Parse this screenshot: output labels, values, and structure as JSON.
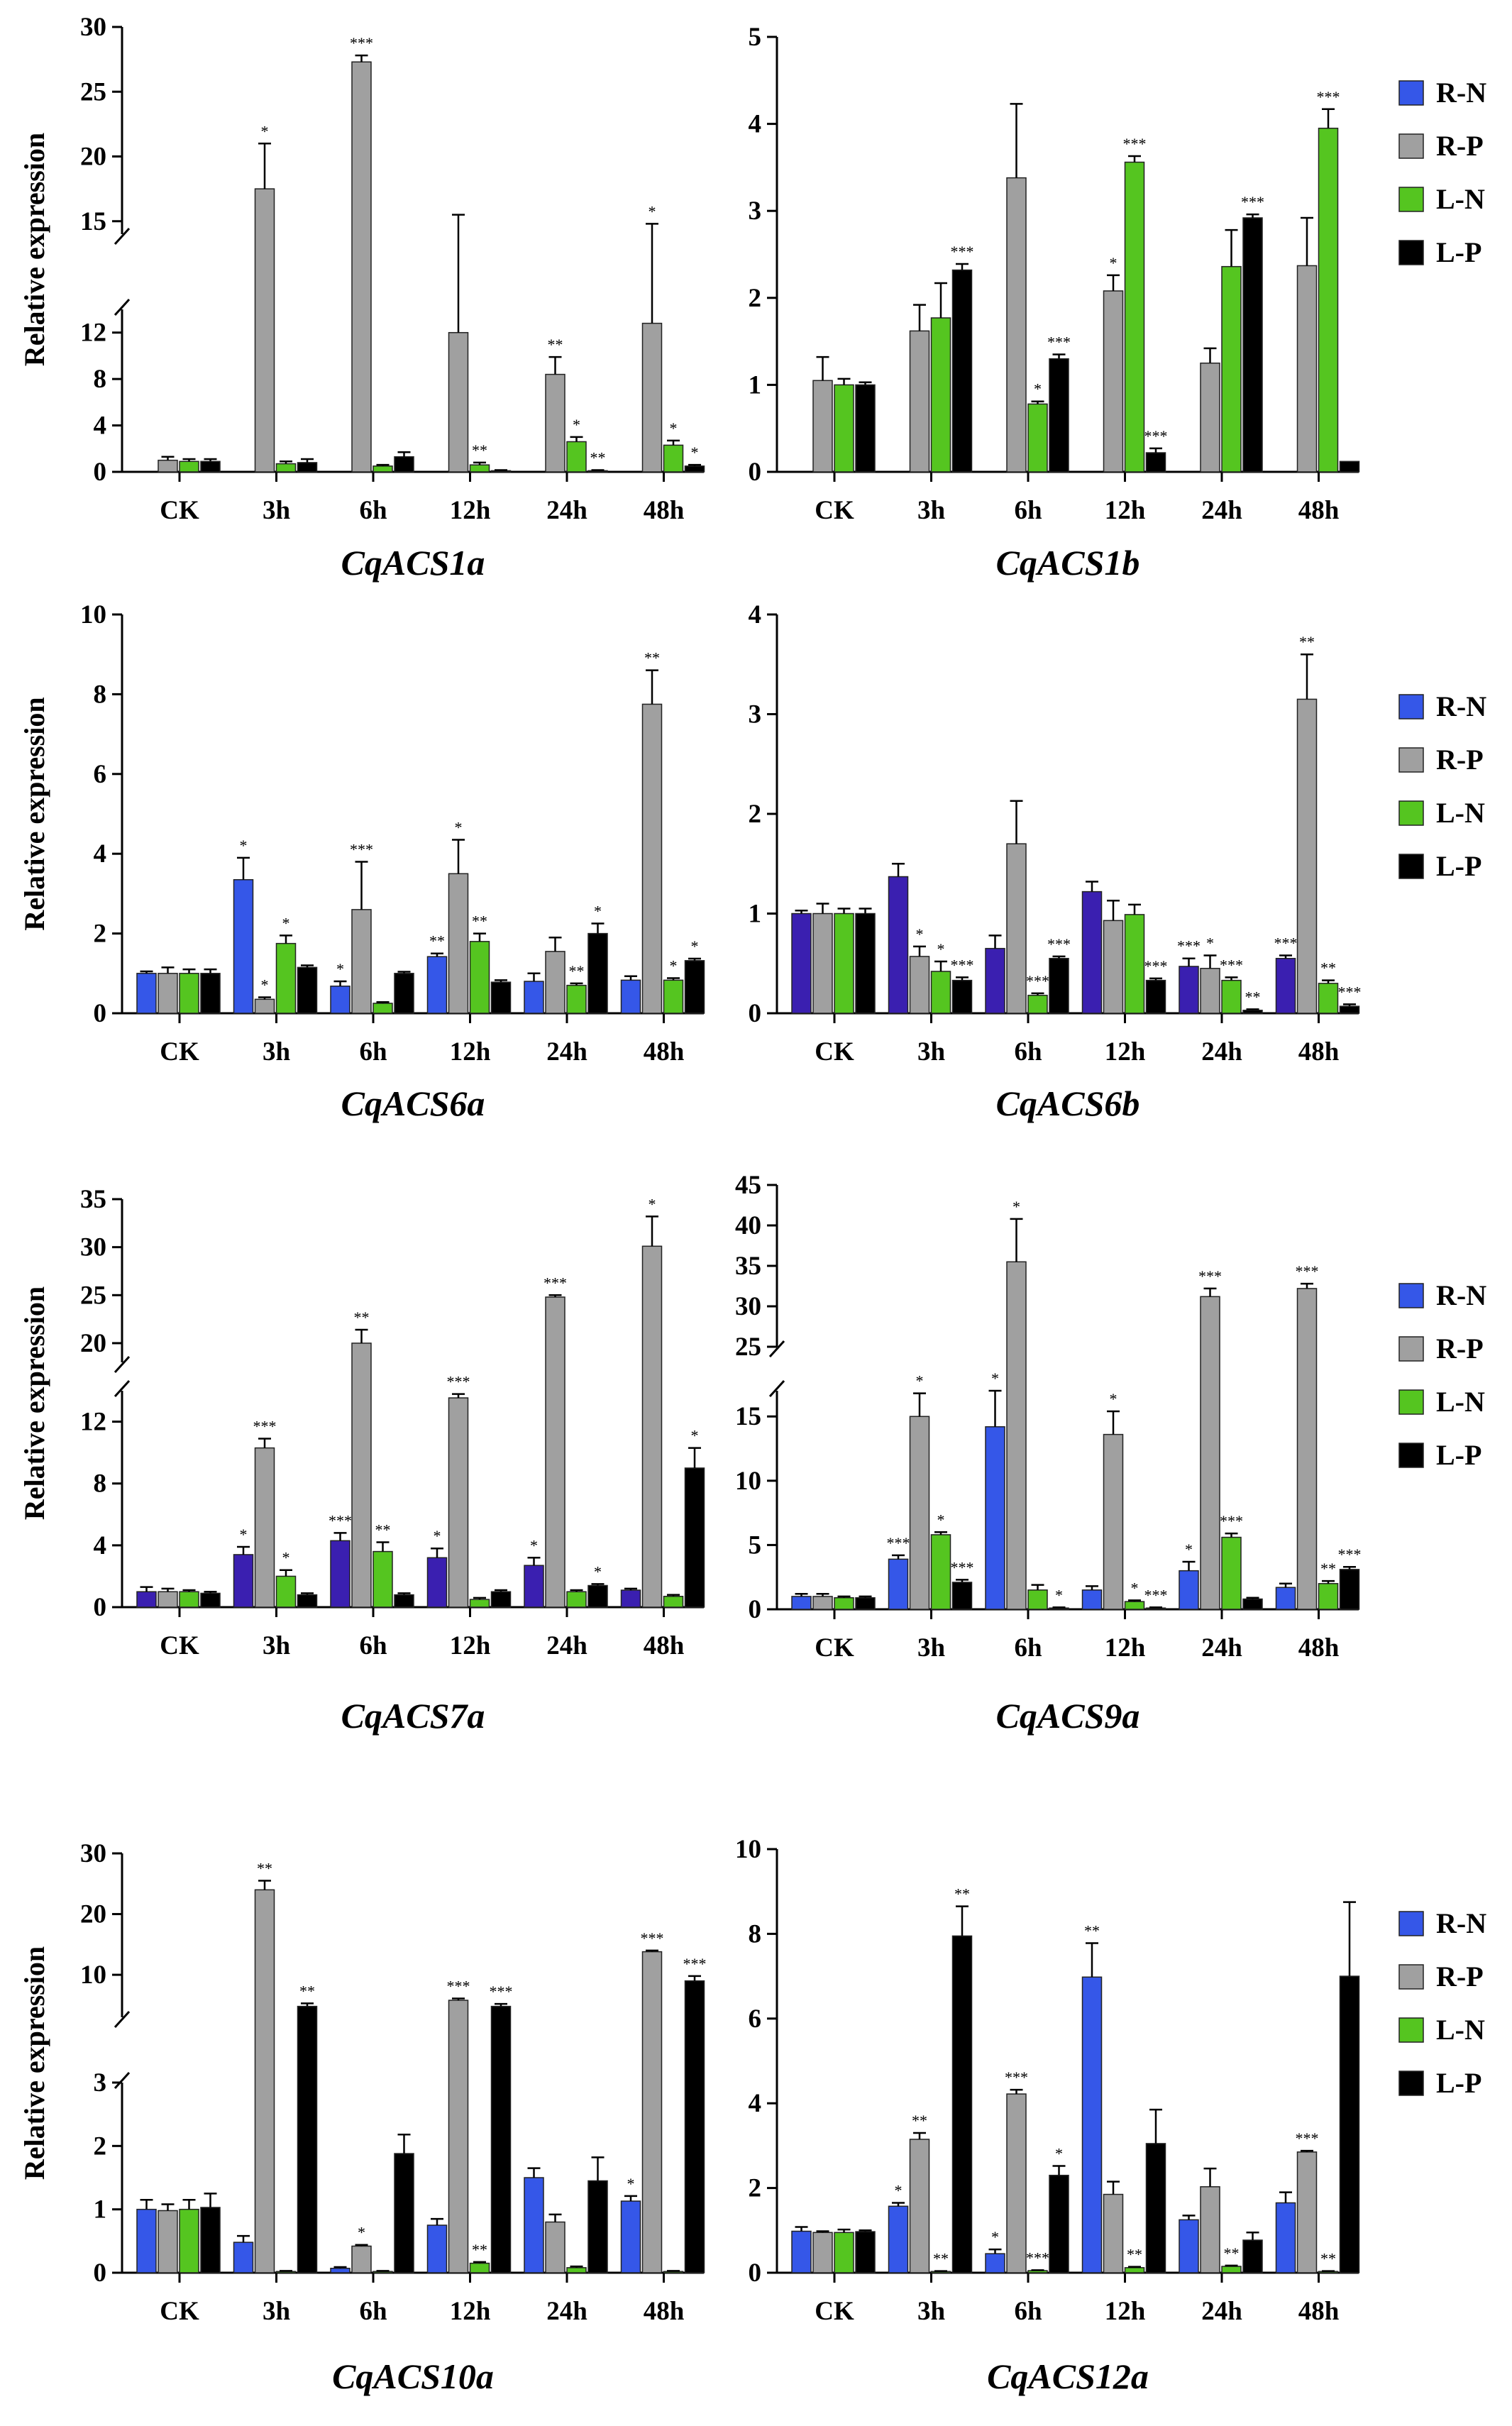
{
  "figure": {
    "ylabel": "Relative expression",
    "categories": [
      "CK",
      "3h",
      "6h",
      "12h",
      "24h",
      "48h"
    ],
    "series_names": [
      "R-N",
      "R-P",
      "L-N",
      "L-P"
    ],
    "colors": {
      "R-N": "#3557e8",
      "R-N-dark": "#3a1fb0",
      "R-P": "#a0a0a0",
      "L-N": "#55c520",
      "L-P": "#000000"
    }
  },
  "chart_data": [
    {
      "type": "bar",
      "title": "CqACS1a",
      "ylabel": "Relative expression",
      "categories": [
        "CK",
        "3h",
        "6h",
        "12h",
        "24h",
        "48h"
      ],
      "broken_axis": {
        "lower": [
          0,
          14
        ],
        "upper": [
          14,
          30
        ]
      },
      "lower_ticks": [
        "0",
        "4",
        "8",
        "12"
      ],
      "upper_ticks": [
        "15",
        "20",
        "25",
        "30"
      ],
      "series": [
        {
          "name": "R-N",
          "values": [
            0,
            0,
            0,
            0,
            0,
            0
          ],
          "errors": [
            0,
            0,
            0,
            0,
            0,
            0
          ],
          "sig": [
            "",
            "",
            "",
            "",
            "",
            ""
          ]
        },
        {
          "name": "R-P",
          "values": [
            1.0,
            17.5,
            27.3,
            12.0,
            8.4,
            12.8
          ],
          "errors": [
            0.3,
            3.5,
            0.5,
            3.5,
            1.5,
            2.0
          ],
          "sig": [
            "",
            "*",
            "***",
            "",
            "**",
            "*"
          ]
        },
        {
          "name": "L-N",
          "values": [
            0.9,
            0.7,
            0.5,
            0.6,
            2.6,
            2.3
          ],
          "errors": [
            0.2,
            0.2,
            0.1,
            0.2,
            0.4,
            0.4
          ],
          "sig": [
            "",
            "",
            "",
            "**",
            "*",
            "*"
          ]
        },
        {
          "name": "L-P",
          "values": [
            0.9,
            0.8,
            1.3,
            0.1,
            0.1,
            0.5
          ],
          "errors": [
            0.2,
            0.3,
            0.4,
            0.05,
            0.05,
            0.1
          ],
          "sig": [
            "",
            "",
            "",
            "",
            "**",
            "*"
          ]
        }
      ],
      "legend": false
    },
    {
      "type": "bar",
      "title": "CqACS1b",
      "ylabel": "",
      "categories": [
        "CK",
        "3h",
        "6h",
        "12h",
        "24h",
        "48h"
      ],
      "ylim": [
        0,
        5
      ],
      "ticks": [
        "0",
        "1",
        "2",
        "3",
        "4",
        "5"
      ],
      "series": [
        {
          "name": "R-N",
          "values": [
            0,
            0,
            0,
            0,
            0,
            0
          ],
          "errors": [
            0,
            0,
            0,
            0,
            0,
            0
          ],
          "sig": [
            "",
            "",
            "",
            "",
            "",
            ""
          ]
        },
        {
          "name": "R-P",
          "values": [
            1.05,
            1.62,
            3.38,
            2.08,
            1.25,
            2.37
          ],
          "errors": [
            0.27,
            0.3,
            0.85,
            0.18,
            0.17,
            0.55
          ],
          "sig": [
            "",
            "",
            "",
            "*",
            "",
            ""
          ]
        },
        {
          "name": "L-N",
          "values": [
            1.0,
            1.77,
            0.78,
            3.56,
            2.36,
            3.95
          ],
          "errors": [
            0.07,
            0.4,
            0.03,
            0.07,
            0.42,
            0.22
          ],
          "sig": [
            "",
            "",
            "*",
            "***",
            "",
            "***"
          ]
        },
        {
          "name": "L-P",
          "values": [
            1.0,
            2.32,
            1.3,
            0.22,
            2.92,
            0.12
          ],
          "errors": [
            0.03,
            0.07,
            0.05,
            0.05,
            0.04,
            0.0
          ],
          "sig": [
            "",
            "***",
            "***",
            "***",
            "***",
            ""
          ]
        }
      ],
      "legend": true
    },
    {
      "type": "bar",
      "title": "CqACS6a",
      "ylabel": "Relative expression",
      "categories": [
        "CK",
        "3h",
        "6h",
        "12h",
        "24h",
        "48h"
      ],
      "ylim": [
        0,
        10
      ],
      "ticks": [
        "0",
        "2",
        "4",
        "6",
        "8",
        "10"
      ],
      "series": [
        {
          "name": "R-N",
          "values": [
            1.0,
            3.35,
            0.68,
            1.42,
            0.8,
            0.83
          ],
          "errors": [
            0.05,
            0.55,
            0.12,
            0.08,
            0.2,
            0.1
          ],
          "sig": [
            "",
            "*",
            "*",
            "**",
            "",
            ""
          ]
        },
        {
          "name": "R-P",
          "values": [
            1.0,
            0.35,
            2.6,
            3.5,
            1.55,
            7.75
          ],
          "errors": [
            0.15,
            0.05,
            1.2,
            0.85,
            0.35,
            0.85
          ],
          "sig": [
            "",
            "*",
            "***",
            "*",
            "",
            "**"
          ]
        },
        {
          "name": "L-N",
          "values": [
            1.0,
            1.75,
            0.25,
            1.8,
            0.7,
            0.83
          ],
          "errors": [
            0.1,
            0.2,
            0.03,
            0.2,
            0.05,
            0.05
          ],
          "sig": [
            "",
            "*",
            "",
            "**",
            "**",
            "*"
          ]
        },
        {
          "name": "L-P",
          "values": [
            1.0,
            1.15,
            1.0,
            0.78,
            2.0,
            1.32
          ],
          "errors": [
            0.1,
            0.05,
            0.04,
            0.05,
            0.25,
            0.05
          ],
          "sig": [
            "",
            "",
            "",
            "",
            "*",
            "*"
          ]
        }
      ],
      "legend": false
    },
    {
      "type": "bar",
      "title": "CqACS6b",
      "ylabel": "",
      "categories": [
        "CK",
        "3h",
        "6h",
        "12h",
        "24h",
        "48h"
      ],
      "ylim": [
        0,
        4
      ],
      "ticks": [
        "0",
        "1",
        "2",
        "3",
        "4"
      ],
      "series": [
        {
          "name": "R-N",
          "values": [
            1.0,
            1.37,
            0.65,
            1.22,
            0.47,
            0.55
          ],
          "errors": [
            0.03,
            0.13,
            0.13,
            0.1,
            0.08,
            0.03
          ],
          "sig": [
            "",
            "",
            "",
            "",
            "***",
            "***"
          ]
        },
        {
          "name": "R-P",
          "values": [
            1.0,
            0.57,
            1.7,
            0.93,
            0.45,
            3.15
          ],
          "errors": [
            0.1,
            0.1,
            0.43,
            0.2,
            0.13,
            0.45
          ],
          "sig": [
            "",
            "*",
            "",
            "",
            "*",
            "**"
          ]
        },
        {
          "name": "L-N",
          "values": [
            1.0,
            0.42,
            0.18,
            0.99,
            0.33,
            0.3
          ],
          "errors": [
            0.05,
            0.1,
            0.02,
            0.1,
            0.03,
            0.03
          ],
          "sig": [
            "",
            "*",
            "***",
            "",
            "***",
            "**"
          ]
        },
        {
          "name": "L-P",
          "values": [
            1.0,
            0.33,
            0.55,
            0.33,
            0.03,
            0.07
          ],
          "errors": [
            0.05,
            0.03,
            0.02,
            0.02,
            0.01,
            0.02
          ],
          "sig": [
            "",
            "***",
            "***",
            "***",
            "**",
            "***"
          ]
        }
      ],
      "legend": true
    },
    {
      "type": "bar",
      "title": "CqACS7a",
      "ylabel": "Relative expression",
      "categories": [
        "CK",
        "3h",
        "6h",
        "12h",
        "24h",
        "48h"
      ],
      "broken_axis": {
        "lower": [
          0,
          14
        ],
        "upper": [
          18,
          35
        ]
      },
      "lower_ticks": [
        "0",
        "4",
        "8",
        "12"
      ],
      "upper_ticks": [
        "20",
        "25",
        "30",
        "35"
      ],
      "series": [
        {
          "name": "R-N",
          "values": [
            1.0,
            3.4,
            4.3,
            3.2,
            2.7,
            1.1
          ],
          "errors": [
            0.3,
            0.5,
            0.5,
            0.6,
            0.5,
            0.1
          ],
          "sig": [
            "",
            "*",
            "***",
            "*",
            "*",
            ""
          ]
        },
        {
          "name": "R-P",
          "values": [
            1.0,
            10.3,
            20.0,
            14.3,
            24.8,
            30.1
          ],
          "errors": [
            0.2,
            0.6,
            1.4,
            0.4,
            0.2,
            3.1
          ],
          "sig": [
            "",
            "***",
            "**",
            "***",
            "***",
            "*"
          ]
        },
        {
          "name": "L-N",
          "values": [
            1.0,
            2.0,
            3.6,
            0.5,
            1.0,
            0.7
          ],
          "errors": [
            0.1,
            0.4,
            0.6,
            0.1,
            0.1,
            0.1
          ],
          "sig": [
            "",
            "*",
            "**",
            "",
            "",
            ""
          ]
        },
        {
          "name": "L-P",
          "values": [
            0.9,
            0.8,
            0.8,
            1.0,
            1.4,
            9.0
          ],
          "errors": [
            0.1,
            0.1,
            0.1,
            0.1,
            0.1,
            1.3
          ],
          "sig": [
            "",
            "",
            "",
            "",
            "*",
            "*"
          ]
        }
      ],
      "legend": false
    },
    {
      "type": "bar",
      "title": "CqACS9a",
      "ylabel": "",
      "categories": [
        "CK",
        "3h",
        "6h",
        "12h",
        "24h",
        "48h"
      ],
      "broken_axis": {
        "lower": [
          0,
          17
        ],
        "upper": [
          25,
          45
        ]
      },
      "lower_ticks": [
        "0",
        "5",
        "10",
        "15"
      ],
      "upper_ticks": [
        "25",
        "30",
        "35",
        "40",
        "45"
      ],
      "series": [
        {
          "name": "R-N",
          "values": [
            1.0,
            3.9,
            14.2,
            1.5,
            3.0,
            1.7
          ],
          "errors": [
            0.2,
            0.3,
            2.8,
            0.3,
            0.7,
            0.3
          ],
          "sig": [
            "",
            "***",
            "*",
            "",
            "*",
            ""
          ]
        },
        {
          "name": "R-P",
          "values": [
            1.0,
            15.0,
            35.5,
            13.6,
            31.2,
            32.2
          ],
          "errors": [
            0.2,
            1.8,
            5.3,
            1.8,
            1.0,
            0.6
          ],
          "sig": [
            "",
            "*",
            "*",
            "*",
            "***",
            "***"
          ]
        },
        {
          "name": "L-N",
          "values": [
            0.9,
            5.8,
            1.5,
            0.6,
            5.6,
            2.0
          ],
          "errors": [
            0.1,
            0.2,
            0.4,
            0.1,
            0.3,
            0.2
          ],
          "sig": [
            "",
            "*",
            "",
            "*",
            "***",
            "**"
          ]
        },
        {
          "name": "L-P",
          "values": [
            0.9,
            2.1,
            0.1,
            0.1,
            0.8,
            3.1
          ],
          "errors": [
            0.1,
            0.2,
            0.05,
            0.05,
            0.1,
            0.2
          ],
          "sig": [
            "",
            "***",
            "*",
            "***",
            "",
            "***"
          ]
        }
      ],
      "legend": true
    },
    {
      "type": "bar",
      "title": "CqACS10a",
      "ylabel": "Relative expression",
      "categories": [
        "CK",
        "3h",
        "6h",
        "12h",
        "24h",
        "48h"
      ],
      "broken_axis": {
        "lower": [
          0,
          3
        ],
        "upper": [
          3,
          30
        ]
      },
      "lower_ticks": [
        "0",
        "1",
        "2",
        "3"
      ],
      "upper_ticks": [
        "10",
        "20",
        "30"
      ],
      "series": [
        {
          "name": "R-N",
          "values": [
            1.0,
            0.48,
            0.07,
            0.75,
            1.5,
            1.13
          ],
          "errors": [
            0.15,
            0.1,
            0.02,
            0.1,
            0.15,
            0.08
          ],
          "sig": [
            "",
            "",
            "",
            "",
            "",
            "*"
          ]
        },
        {
          "name": "R-P",
          "values": [
            0.98,
            24.0,
            0.42,
            5.8,
            0.8,
            13.8
          ],
          "errors": [
            0.1,
            1.5,
            0.02,
            0.3,
            0.12,
            0.2
          ],
          "sig": [
            "",
            "**",
            "*",
            "***",
            "",
            "***"
          ]
        },
        {
          "name": "L-N",
          "values": [
            1.0,
            0.02,
            0.02,
            0.15,
            0.08,
            0.02
          ],
          "errors": [
            0.15,
            0.01,
            0.01,
            0.02,
            0.02,
            0.01
          ],
          "sig": [
            "",
            "",
            "",
            "**",
            "",
            ""
          ]
        },
        {
          "name": "L-P",
          "values": [
            1.03,
            4.8,
            1.88,
            4.8,
            1.45,
            9.0
          ],
          "errors": [
            0.22,
            0.5,
            0.3,
            0.4,
            0.37,
            0.8
          ],
          "sig": [
            "",
            "**",
            "",
            "***",
            "",
            "***"
          ]
        }
      ],
      "legend": false
    },
    {
      "type": "bar",
      "title": "CqACS12a",
      "ylabel": "",
      "categories": [
        "CK",
        "3h",
        "6h",
        "12h",
        "24h",
        "48h"
      ],
      "ylim": [
        0,
        10
      ],
      "ticks": [
        "0",
        "2",
        "4",
        "6",
        "8",
        "10"
      ],
      "series": [
        {
          "name": "R-N",
          "values": [
            0.98,
            1.57,
            0.45,
            6.98,
            1.25,
            1.65
          ],
          "errors": [
            0.1,
            0.08,
            0.1,
            0.8,
            0.1,
            0.25
          ],
          "sig": [
            "",
            "*",
            "*",
            "**",
            "",
            ""
          ]
        },
        {
          "name": "R-P",
          "values": [
            0.95,
            3.15,
            4.22,
            1.85,
            2.03,
            2.85
          ],
          "errors": [
            0.03,
            0.15,
            0.1,
            0.3,
            0.43,
            0.03
          ],
          "sig": [
            "",
            "**",
            "***",
            "",
            "",
            "***"
          ]
        },
        {
          "name": "L-N",
          "values": [
            0.95,
            0.03,
            0.05,
            0.12,
            0.15,
            0.03
          ],
          "errors": [
            0.07,
            0.01,
            0.01,
            0.02,
            0.02,
            0.01
          ],
          "sig": [
            "",
            "**",
            "***",
            "**",
            "**",
            "**"
          ]
        },
        {
          "name": "L-P",
          "values": [
            0.97,
            7.95,
            2.3,
            3.05,
            0.77,
            7.0
          ],
          "errors": [
            0.03,
            0.7,
            0.22,
            0.8,
            0.18,
            1.75
          ],
          "sig": [
            "",
            "**",
            "*",
            "",
            "",
            ""
          ]
        }
      ],
      "legend": true
    }
  ]
}
